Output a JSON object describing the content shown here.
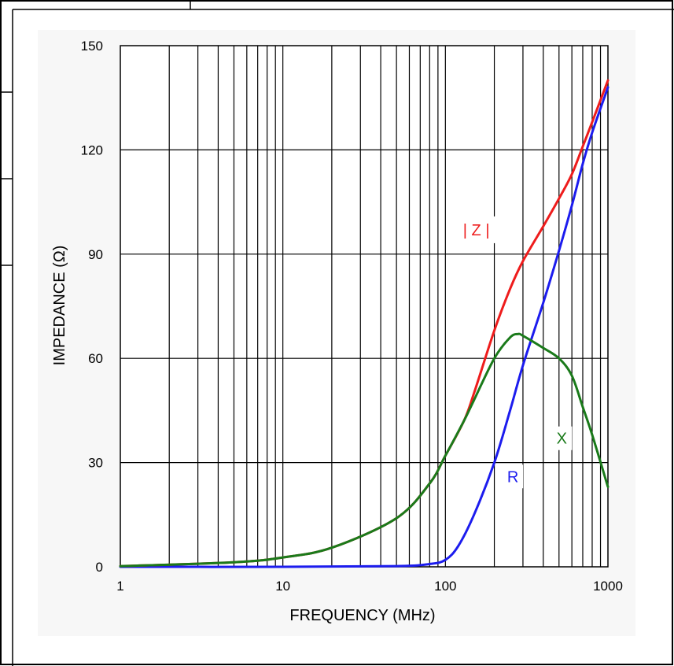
{
  "chart_data": {
    "type": "line",
    "title": "",
    "xlabel": "FREQUENCY (MHz)",
    "ylabel": "IMPEDANCE (Ω)",
    "x_scale": "log",
    "xlim": [
      1,
      1000
    ],
    "ylim": [
      0,
      150
    ],
    "grid": true,
    "x_ticks": [
      1,
      10,
      100,
      1000
    ],
    "x_tick_labels": [
      "1",
      "10",
      "100",
      "1000"
    ],
    "y_ticks": [
      0,
      30,
      60,
      90,
      120,
      150
    ],
    "y_tick_labels": [
      "0",
      "30",
      "60",
      "90",
      "120",
      "150"
    ],
    "series": [
      {
        "name": "| Z |",
        "color": "#ee1c1c",
        "x": [
          1,
          5,
          10,
          20,
          50,
          80,
          100,
          130,
          150,
          200,
          250,
          300,
          400,
          500,
          600,
          700,
          800,
          1000
        ],
        "y": [
          0.2,
          1.3,
          2.7,
          5.5,
          14,
          24,
          32,
          42,
          50,
          68,
          80,
          88,
          98,
          106,
          113,
          121,
          128,
          140
        ]
      },
      {
        "name": "X",
        "color": "#1a7a1a",
        "x": [
          1,
          5,
          10,
          20,
          50,
          80,
          100,
          130,
          150,
          200,
          250,
          280,
          300,
          400,
          500,
          600,
          700,
          800,
          1000
        ],
        "y": [
          0.2,
          1.3,
          2.7,
          5.5,
          14,
          24,
          32,
          42,
          48,
          60,
          66,
          67,
          66.5,
          63,
          60,
          55,
          46,
          38,
          23
        ]
      },
      {
        "name": "R",
        "color": "#1c1cee",
        "x": [
          1,
          10,
          50,
          80,
          100,
          120,
          150,
          200,
          250,
          300,
          400,
          500,
          600,
          700,
          800,
          1000
        ],
        "y": [
          0,
          0,
          0.2,
          0.8,
          2,
          6,
          15,
          30,
          45,
          58,
          76,
          91,
          104,
          116,
          125,
          138
        ]
      }
    ],
    "annotations": [
      {
        "text": "| Z |",
        "series": "| Z |"
      },
      {
        "text": "X",
        "series": "X"
      },
      {
        "text": "R",
        "series": "R"
      }
    ]
  }
}
